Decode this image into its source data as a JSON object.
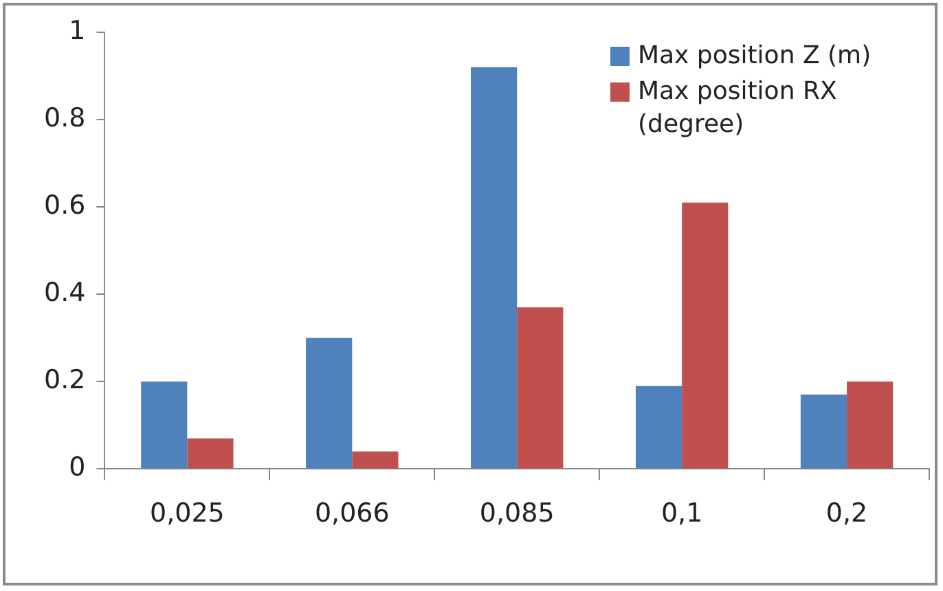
{
  "chart_data": {
    "type": "bar",
    "categories": [
      "0,025",
      "0,066",
      "0,085",
      "0,1",
      "0,2"
    ],
    "series": [
      {
        "name": "Max position Z (m)",
        "color": "#4f81bd",
        "values": [
          0.2,
          0.3,
          0.92,
          0.19,
          0.17
        ]
      },
      {
        "name": "Max position RX (degree)",
        "color": "#c0504d",
        "values": [
          0.07,
          0.04,
          0.37,
          0.61,
          0.2
        ]
      }
    ],
    "ylim": [
      0,
      1
    ],
    "yticks": [
      0,
      0.2,
      0.4,
      0.6,
      0.8,
      1
    ],
    "grid": false,
    "legend": "top right"
  }
}
